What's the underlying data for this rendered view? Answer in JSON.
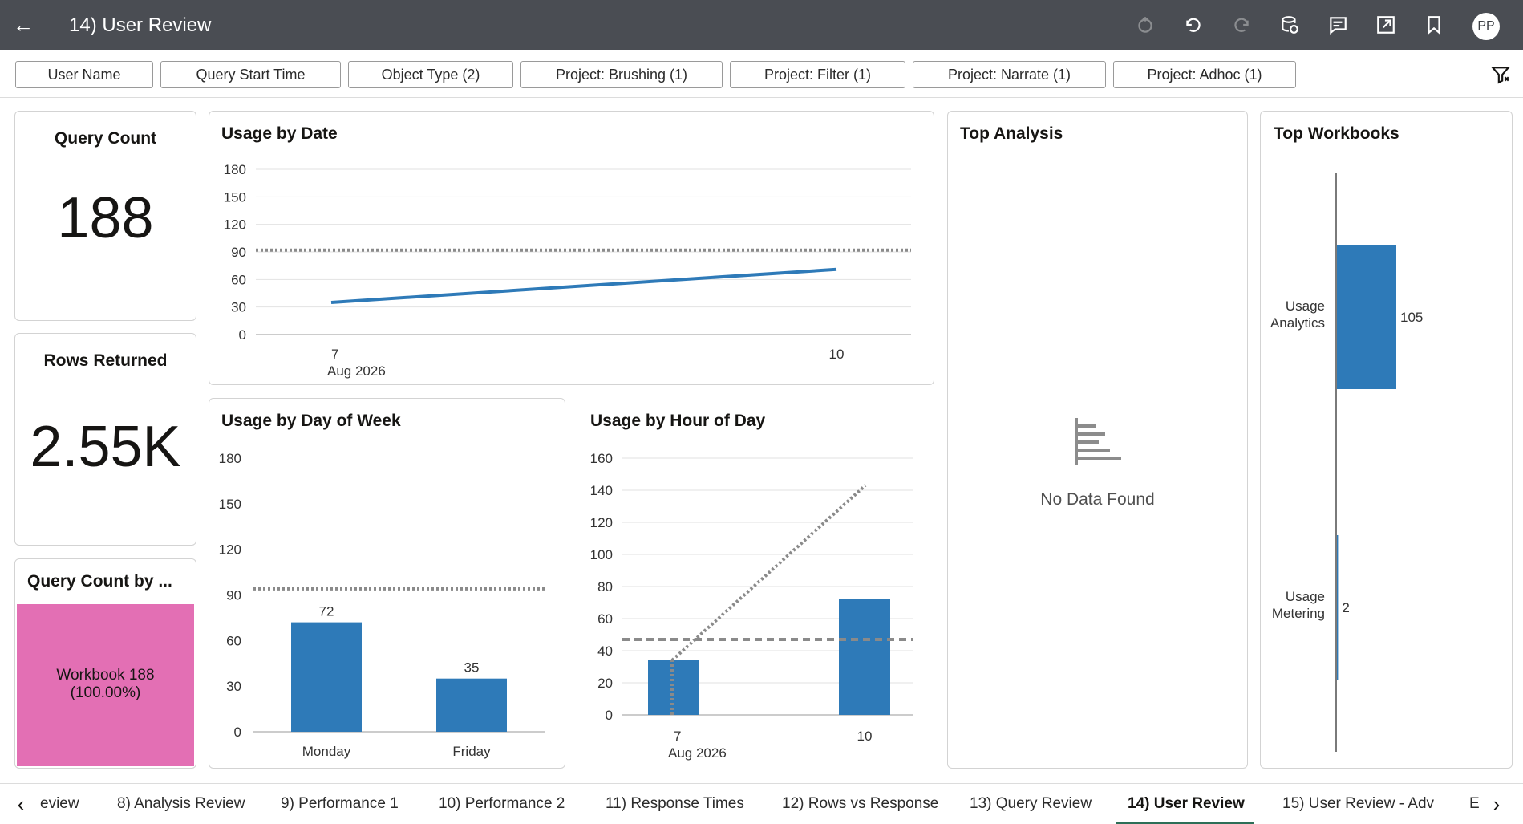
{
  "header": {
    "title": "14) User Review",
    "user_initials": "PP",
    "icons": [
      "back-arrow-icon",
      "refresh-icon",
      "undo-icon",
      "redo-icon",
      "data-refresh-icon",
      "comments-icon",
      "export-icon",
      "bookmark-icon"
    ]
  },
  "filters": {
    "chips": [
      "User Name",
      "Query Start Time",
      "Object Type (2)",
      "Project: Brushing (1)",
      "Project: Filter (1)",
      "Project: Narrate (1)",
      "Project: Adhoc (1)"
    ]
  },
  "kpi": {
    "query_count": {
      "title": "Query Count",
      "value": "188"
    },
    "rows_returned": {
      "title": "Rows Returned",
      "value": "2.55K"
    }
  },
  "treemap": {
    "title": "Query Count by ...",
    "label_line1": "Workbook 188",
    "label_line2": "(100.00%)",
    "color": "#e36fb4"
  },
  "usage_by_date": {
    "title": "Usage by Date",
    "chart_data": {
      "type": "line",
      "x": [
        "7",
        "10"
      ],
      "x_sublabel": "Aug 2026",
      "series": [
        {
          "values": [
            35,
            71
          ]
        }
      ],
      "reference_line": 92,
      "yticks": [
        "180",
        "150",
        "120",
        "90",
        "60",
        "30",
        "0"
      ],
      "ylim": [
        0,
        180
      ],
      "grid": true
    }
  },
  "usage_by_dow": {
    "title": "Usage by Day of Week",
    "chart_data": {
      "type": "bar",
      "categories": [
        "Monday",
        "Friday"
      ],
      "values": [
        72,
        35
      ],
      "data_labels": [
        "72",
        "35"
      ],
      "reference_line": 94,
      "yticks": [
        "180",
        "150",
        "120",
        "90",
        "60",
        "30",
        "0"
      ],
      "ylim": [
        0,
        180
      ],
      "grid": false
    }
  },
  "usage_by_hour": {
    "title": "Usage by Hour of Day",
    "chart_data": {
      "type": "bar",
      "categories": [
        "7",
        "10"
      ],
      "x_sublabel": "Aug 2026",
      "values": [
        34,
        72
      ],
      "reference_line": 47,
      "trend_line": [
        0,
        143
      ],
      "yticks": [
        "160",
        "140",
        "120",
        "100",
        "80",
        "60",
        "40",
        "20",
        "0"
      ],
      "ylim": [
        0,
        160
      ],
      "grid": true
    }
  },
  "top_analysis": {
    "title": "Top Analysis",
    "empty_text": "No Data Found"
  },
  "top_workbooks": {
    "title": "Top Workbooks",
    "chart_data": {
      "type": "bar",
      "orientation": "horizontal",
      "categories": [
        [
          "Usage",
          "Analytics"
        ],
        [
          "Usage",
          "Metering"
        ]
      ],
      "values": [
        105,
        2
      ],
      "data_labels": [
        "105",
        "2"
      ]
    }
  },
  "colors": {
    "bar": "#2e7ab8",
    "header": "#4a4d53",
    "reference": "#8a8a8a"
  },
  "tabs": {
    "items": [
      "eview",
      "8) Analysis Review",
      "9) Performance 1",
      "10) Performance 2",
      "11) Response Times",
      "12) Rows vs Response",
      "13) Query Review",
      "14) User Review",
      "15) User Review - Adv",
      "E"
    ],
    "active_index": 7
  }
}
